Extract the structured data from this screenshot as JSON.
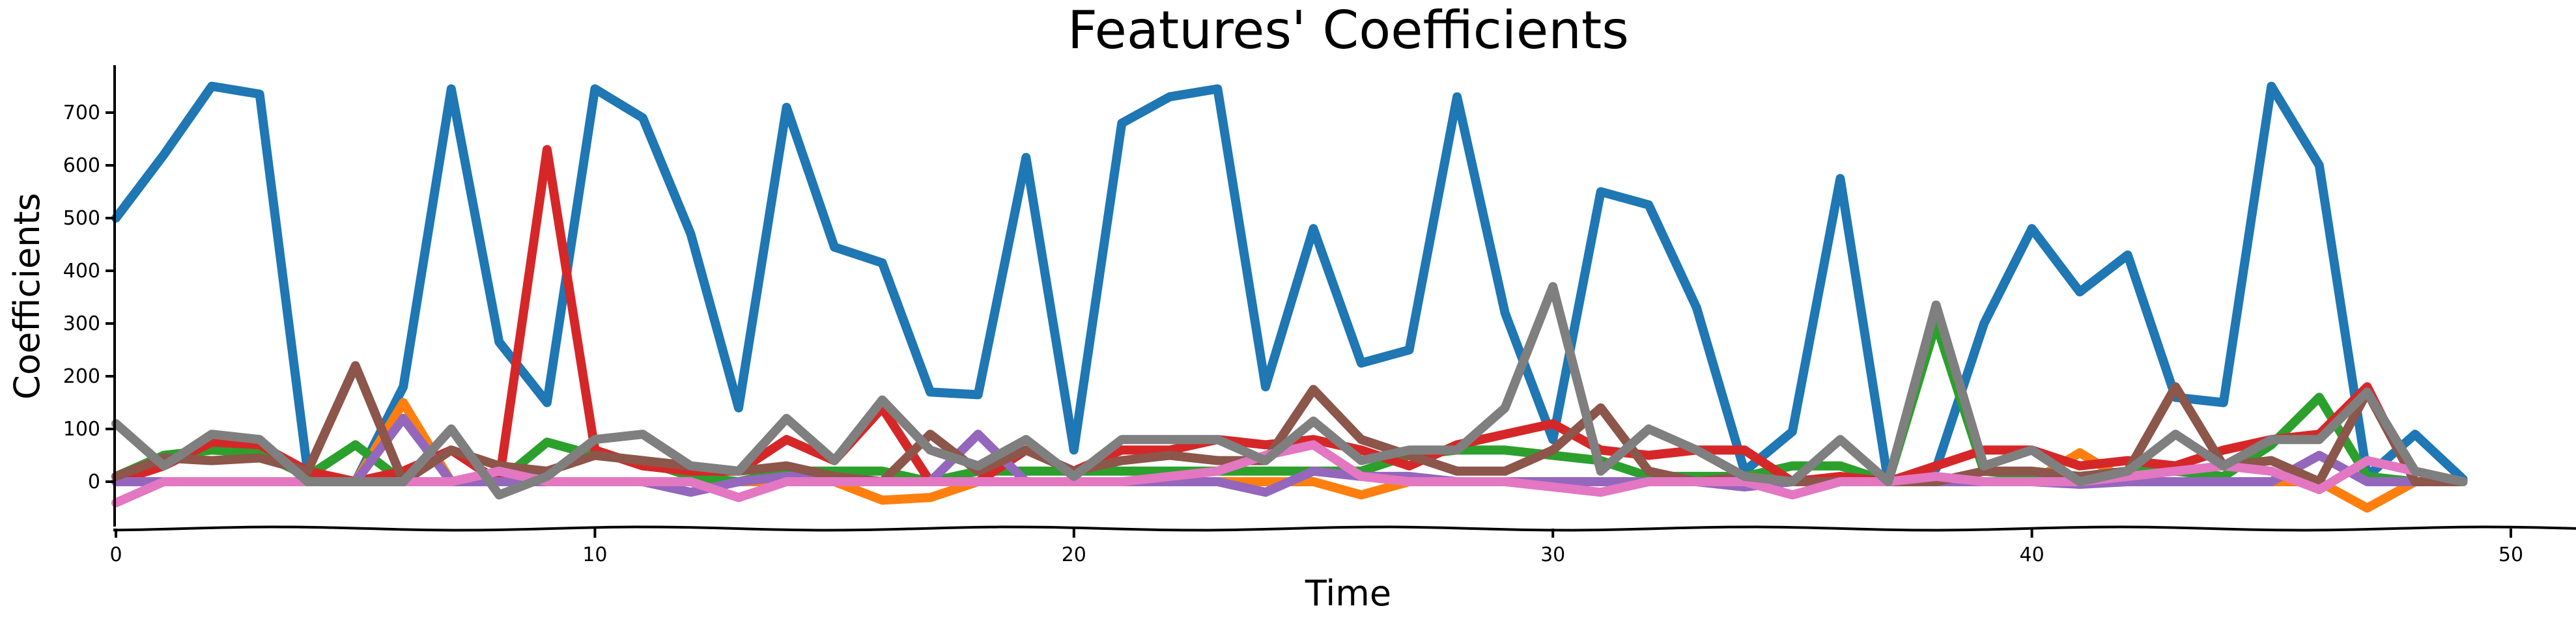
{
  "chart_data": {
    "type": "line",
    "title": "Features' Coefficients",
    "xlabel": "Time",
    "ylabel": "Coefficients",
    "xlim": [
      0,
      51.5
    ],
    "ylim": [
      -85,
      790
    ],
    "xticks": [
      0,
      10,
      20,
      30,
      40,
      50
    ],
    "yticks": [
      0,
      100,
      200,
      300,
      400,
      500,
      600,
      700
    ],
    "grid": false,
    "legend": "none",
    "x": [
      0,
      1,
      2,
      3,
      4,
      5,
      6,
      7,
      8,
      9,
      10,
      11,
      12,
      13,
      14,
      15,
      16,
      17,
      18,
      19,
      20,
      21,
      22,
      23,
      24,
      25,
      26,
      27,
      28,
      29,
      30,
      31,
      32,
      33,
      34,
      35,
      36,
      37,
      38,
      39,
      40,
      41,
      42,
      43,
      44,
      45,
      46,
      47,
      48,
      49
    ],
    "series": [
      {
        "color": "#1f77b4",
        "values": [
          500,
          620,
          750,
          735,
          20,
          0,
          180,
          745,
          265,
          150,
          745,
          690,
          470,
          140,
          710,
          445,
          415,
          170,
          165,
          615,
          60,
          680,
          730,
          745,
          180,
          480,
          225,
          250,
          730,
          320,
          80,
          550,
          525,
          330,
          20,
          95,
          575,
          0,
          25,
          300,
          480,
          360,
          430,
          160,
          150,
          750,
          600,
          10,
          90,
          5
        ]
      },
      {
        "color": "#ff7f0e",
        "values": [
          0,
          0,
          0,
          0,
          0,
          0,
          150,
          0,
          0,
          0,
          0,
          0,
          0,
          0,
          0,
          0,
          -35,
          -30,
          0,
          0,
          0,
          0,
          0,
          0,
          0,
          0,
          -25,
          0,
          0,
          0,
          0,
          0,
          0,
          0,
          0,
          0,
          0,
          0,
          0,
          0,
          0,
          55,
          0,
          0,
          0,
          0,
          0,
          -50,
          0,
          0
        ]
      },
      {
        "color": "#2ca02c",
        "values": [
          10,
          50,
          60,
          55,
          10,
          70,
          0,
          0,
          0,
          75,
          50,
          40,
          10,
          0,
          20,
          20,
          20,
          0,
          20,
          20,
          20,
          20,
          20,
          20,
          20,
          20,
          20,
          50,
          60,
          60,
          50,
          40,
          10,
          10,
          10,
          30,
          30,
          0,
          300,
          20,
          10,
          10,
          20,
          20,
          10,
          70,
          160,
          10,
          0,
          0
        ]
      },
      {
        "color": "#d62728",
        "values": [
          0,
          30,
          75,
          70,
          20,
          0,
          20,
          60,
          0,
          630,
          60,
          30,
          20,
          20,
          80,
          40,
          140,
          0,
          0,
          60,
          20,
          60,
          60,
          80,
          70,
          80,
          60,
          30,
          70,
          90,
          110,
          60,
          50,
          60,
          60,
          0,
          10,
          0,
          30,
          60,
          60,
          30,
          40,
          30,
          60,
          80,
          90,
          180,
          0,
          0
        ]
      },
      {
        "color": "#9467bd",
        "values": [
          0,
          0,
          0,
          0,
          0,
          0,
          120,
          0,
          0,
          0,
          0,
          0,
          -20,
          0,
          10,
          10,
          0,
          0,
          90,
          0,
          0,
          0,
          0,
          0,
          -20,
          20,
          10,
          10,
          0,
          0,
          0,
          0,
          0,
          0,
          -10,
          0,
          0,
          0,
          0,
          0,
          0,
          -5,
          0,
          0,
          0,
          0,
          50,
          0,
          0,
          0
        ]
      },
      {
        "color": "#8c564b",
        "values": [
          10,
          45,
          40,
          45,
          20,
          220,
          0,
          60,
          30,
          20,
          50,
          40,
          30,
          20,
          30,
          10,
          0,
          90,
          20,
          60,
          20,
          40,
          50,
          40,
          40,
          175,
          80,
          50,
          20,
          20,
          60,
          140,
          20,
          0,
          10,
          0,
          0,
          0,
          0,
          20,
          20,
          10,
          20,
          180,
          30,
          40,
          0,
          170,
          0,
          0
        ]
      },
      {
        "color": "#e377c2",
        "values": [
          -40,
          0,
          0,
          0,
          0,
          0,
          0,
          0,
          20,
          0,
          0,
          0,
          0,
          -30,
          0,
          0,
          0,
          0,
          0,
          0,
          0,
          0,
          10,
          20,
          50,
          70,
          10,
          0,
          0,
          0,
          -10,
          -20,
          0,
          0,
          0,
          -25,
          0,
          0,
          10,
          0,
          0,
          0,
          10,
          20,
          30,
          20,
          -15,
          40,
          20,
          0
        ]
      },
      {
        "color": "#7f7f7f",
        "values": [
          110,
          30,
          90,
          80,
          0,
          0,
          0,
          100,
          -25,
          10,
          80,
          90,
          30,
          20,
          120,
          40,
          155,
          60,
          30,
          80,
          10,
          80,
          80,
          80,
          40,
          115,
          40,
          60,
          60,
          140,
          370,
          20,
          100,
          60,
          10,
          0,
          80,
          0,
          335,
          30,
          60,
          0,
          20,
          90,
          30,
          80,
          80,
          170,
          20,
          0
        ]
      }
    ]
  }
}
